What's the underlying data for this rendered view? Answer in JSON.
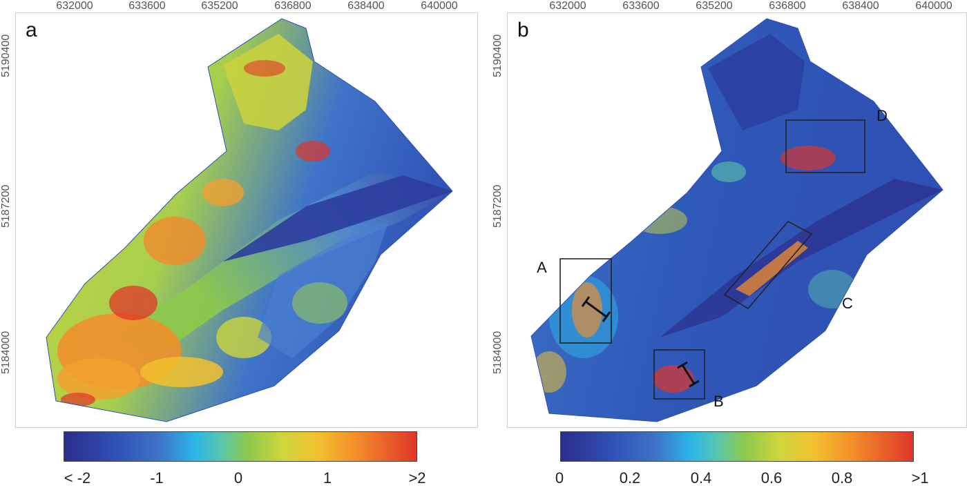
{
  "panels": {
    "a": {
      "letter": "a",
      "x_ticks": [
        "632000",
        "633600",
        "635200",
        "636800",
        "638400",
        "640000"
      ],
      "y_ticks": [
        "5190400",
        "5187200",
        "5184000"
      ],
      "colorbar_labels": [
        "< -2",
        "-1",
        "0",
        "1",
        ">2"
      ]
    },
    "b": {
      "letter": "b",
      "x_ticks": [
        "632000",
        "633600",
        "635200",
        "636800",
        "638400",
        "640000"
      ],
      "y_ticks": [
        "5190400",
        "5187200",
        "5184000"
      ],
      "colorbar_labels": [
        "0",
        "0.2",
        "0.4",
        "0.6",
        "0.8",
        ">1"
      ],
      "boxes": [
        "A",
        "B",
        "C",
        "D"
      ]
    }
  },
  "colors": {
    "low": "#2b2d8c",
    "mid_low": "#2bb6e8",
    "mid": "#8cc94c",
    "mid_high": "#f2c12e",
    "high": "#e0352a"
  }
}
